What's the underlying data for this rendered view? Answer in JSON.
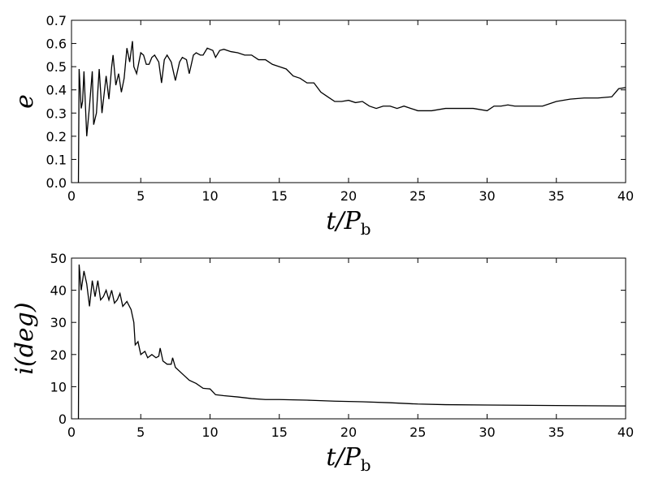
{
  "chart_data": [
    {
      "type": "line",
      "xlabel": [
        "t/P",
        "b"
      ],
      "ylabel": "e",
      "xlim": [
        0,
        40
      ],
      "ylim": [
        0,
        0.7
      ],
      "xticks": [
        0,
        5,
        10,
        15,
        20,
        25,
        30,
        35,
        40
      ],
      "yticks": [
        {
          "value": 0,
          "label": "0.0"
        },
        0.1,
        0.2,
        0.3,
        0.4,
        0.5,
        0.6,
        0.7
      ],
      "x": [
        0.5,
        0.55,
        0.7,
        0.8,
        0.9,
        1.1,
        1.3,
        1.5,
        1.6,
        1.8,
        2.0,
        2.2,
        2.5,
        2.7,
        2.9,
        3.0,
        3.2,
        3.4,
        3.6,
        3.8,
        4.0,
        4.2,
        4.4,
        4.5,
        4.7,
        5.0,
        5.2,
        5.4,
        5.6,
        5.8,
        6.0,
        6.3,
        6.5,
        6.7,
        6.9,
        7.2,
        7.5,
        7.8,
        8.0,
        8.3,
        8.5,
        8.8,
        9.0,
        9.3,
        9.5,
        9.8,
        10.2,
        10.4,
        10.7,
        11,
        11.5,
        12,
        12.5,
        13,
        13.5,
        14,
        14.5,
        15,
        15.5,
        16,
        16.5,
        17,
        17.5,
        18,
        18.5,
        19,
        19.5,
        20,
        20.5,
        21,
        21.5,
        22,
        22.5,
        23,
        23.5,
        24,
        24.5,
        25,
        26,
        27,
        28,
        29,
        30,
        30.5,
        31,
        31.5,
        32,
        33,
        34,
        35,
        36,
        37,
        38,
        39,
        39.5,
        40
      ],
      "series": [
        {
          "color": "#000000",
          "values": [
            0,
            0.49,
            0.32,
            0.35,
            0.48,
            0.2,
            0.33,
            0.48,
            0.25,
            0.3,
            0.49,
            0.3,
            0.46,
            0.36,
            0.5,
            0.55,
            0.42,
            0.47,
            0.39,
            0.45,
            0.58,
            0.52,
            0.61,
            0.5,
            0.47,
            0.56,
            0.55,
            0.51,
            0.51,
            0.54,
            0.55,
            0.52,
            0.43,
            0.53,
            0.55,
            0.52,
            0.44,
            0.52,
            0.54,
            0.53,
            0.47,
            0.55,
            0.56,
            0.55,
            0.55,
            0.58,
            0.57,
            0.54,
            0.57,
            0.575,
            0.565,
            0.56,
            0.55,
            0.55,
            0.53,
            0.53,
            0.51,
            0.5,
            0.49,
            0.46,
            0.45,
            0.43,
            0.43,
            0.39,
            0.37,
            0.35,
            0.35,
            0.355,
            0.345,
            0.35,
            0.33,
            0.32,
            0.33,
            0.33,
            0.32,
            0.33,
            0.32,
            0.31,
            0.31,
            0.32,
            0.32,
            0.32,
            0.31,
            0.33,
            0.33,
            0.335,
            0.33,
            0.33,
            0.33,
            0.35,
            0.36,
            0.365,
            0.365,
            0.37,
            0.405,
            0.41
          ]
        }
      ]
    },
    {
      "type": "line",
      "xlabel": [
        "t/P",
        "b"
      ],
      "ylabel": "i(deg)",
      "xlim": [
        0,
        40
      ],
      "ylim": [
        0,
        50
      ],
      "xticks": [
        0,
        5,
        10,
        15,
        20,
        25,
        30,
        35,
        40
      ],
      "yticks": [
        0,
        10,
        20,
        30,
        40,
        50
      ],
      "x": [
        0.5,
        0.55,
        0.7,
        0.9,
        1.1,
        1.3,
        1.5,
        1.7,
        1.9,
        2.1,
        2.3,
        2.5,
        2.7,
        2.9,
        3.1,
        3.3,
        3.5,
        3.7,
        4.0,
        4.3,
        4.5,
        4.6,
        4.8,
        5.0,
        5.3,
        5.5,
        5.8,
        6.1,
        6.3,
        6.4,
        6.6,
        6.9,
        7.2,
        7.3,
        7.5,
        8.0,
        8.5,
        9.0,
        9.5,
        10.0,
        10.4,
        11,
        12,
        13,
        14,
        15,
        17,
        19,
        21,
        23,
        25,
        27,
        30,
        33,
        36,
        40
      ],
      "series": [
        {
          "color": "#000000",
          "values": [
            0,
            48,
            40,
            46,
            42,
            35,
            43,
            38,
            43,
            37,
            38,
            40,
            37,
            40,
            36,
            37,
            39,
            35,
            36.5,
            34,
            30,
            23,
            24,
            20,
            21,
            19,
            20,
            19,
            19.5,
            22,
            18,
            17,
            17,
            19,
            16,
            14,
            12,
            11,
            9.5,
            9.3,
            7.5,
            7.2,
            6.8,
            6.3,
            6.0,
            6.0,
            5.8,
            5.5,
            5.3,
            5.0,
            4.6,
            4.4,
            4.3,
            4.2,
            4.1,
            4.0
          ]
        }
      ]
    }
  ]
}
